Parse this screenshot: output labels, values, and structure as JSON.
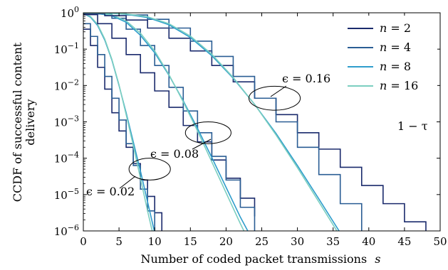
{
  "chart_data": {
    "type": "line",
    "xlabel_text": "Number of coded packet transmissions",
    "xlabel_var": "s",
    "ylabel": [
      "CCDF of successful content",
      "delivery"
    ],
    "xlim": [
      0,
      50
    ],
    "ylim_log10": [
      -6,
      0
    ],
    "y_scale": "log",
    "x_ticks": [
      0,
      5,
      10,
      15,
      20,
      25,
      30,
      35,
      40,
      45,
      50
    ],
    "y_ticks": [
      {
        "base": "10",
        "exp": "0"
      },
      {
        "base": "10",
        "exp": "−1"
      },
      {
        "base": "10",
        "exp": "−2"
      },
      {
        "base": "10",
        "exp": "−3"
      },
      {
        "base": "10",
        "exp": "−4"
      },
      {
        "base": "10",
        "exp": "−5"
      },
      {
        "base": "10",
        "exp": "−6"
      }
    ],
    "grid": false,
    "legend_position": "top-right",
    "colors": {
      "n2": "#1a2a6c",
      "n4": "#2a5d94",
      "n8": "#2f9dcc",
      "n16": "#7ccfc0",
      "axis": "#000000"
    },
    "legend": [
      {
        "var": "n",
        "value": "2",
        "color_key": "n2"
      },
      {
        "var": "n",
        "value": "4",
        "color_key": "n4"
      },
      {
        "var": "n",
        "value": "8",
        "color_key": "n8"
      },
      {
        "var": "n",
        "value": "16",
        "color_key": "n16"
      }
    ],
    "annotations": {
      "one_minus_tau": "1 − τ",
      "eps_016": "ϵ = 0.16",
      "eps_008": "ϵ = 0.08",
      "eps_002": "ϵ = 0.02"
    },
    "ellipses": [
      {
        "name": "ellipse-eps-016",
        "cx": 26.8,
        "cy": -2.35,
        "rx": 3.6,
        "ry": 0.33
      },
      {
        "name": "ellipse-eps-008",
        "cx": 17.5,
        "cy": -3.3,
        "rx": 3.2,
        "ry": 0.3
      },
      {
        "name": "ellipse-eps-002",
        "cx": 9.3,
        "cy": -4.3,
        "rx": 2.9,
        "ry": 0.3
      }
    ],
    "groups": [
      {
        "epsilon": "0.02",
        "series": [
          {
            "color_key": "n2",
            "step": true,
            "x": [
              0,
              1,
              2,
              3,
              4,
              5,
              6,
              7,
              8,
              9,
              10,
              11
            ],
            "y": [
              -0.45,
              -0.9,
              -1.5,
              -2.1,
              -2.75,
              -3.25,
              -3.7,
              -4.15,
              -4.6,
              -5.05,
              -5.5,
              -6.05
            ]
          },
          {
            "color_key": "n4",
            "step": true,
            "x": [
              0,
              1,
              2,
              3,
              4,
              5,
              6,
              7,
              8,
              9,
              10
            ],
            "y": [
              -0.3,
              -0.65,
              -1.15,
              -1.75,
              -2.35,
              -2.95,
              -3.6,
              -4.2,
              -4.85,
              -5.45,
              -6.05
            ]
          },
          {
            "color_key": "n8",
            "step": false,
            "x": [
              0,
              1,
              2,
              3,
              4,
              5,
              6,
              7,
              8,
              9,
              10
            ],
            "y": [
              -0.02,
              -0.12,
              -0.35,
              -0.75,
              -1.3,
              -2.0,
              -2.75,
              -3.55,
              -4.35,
              -5.2,
              -6.05
            ]
          },
          {
            "color_key": "n16",
            "step": false,
            "x": [
              0,
              1,
              2,
              3,
              4,
              5,
              6,
              7,
              8,
              9,
              10
            ],
            "y": [
              -0.01,
              -0.1,
              -0.32,
              -0.72,
              -1.28,
              -1.98,
              -2.8,
              -3.65,
              -4.55,
              -5.45,
              -6.3
            ]
          }
        ]
      },
      {
        "epsilon": "0.08",
        "series": [
          {
            "color_key": "n2",
            "step": true,
            "x": [
              0,
              2,
              4,
              6,
              8,
              10,
              12,
              14,
              16,
              18,
              20,
              22,
              24
            ],
            "y": [
              -0.05,
              -0.3,
              -0.7,
              -1.15,
              -1.65,
              -2.15,
              -2.6,
              -3.1,
              -3.55,
              -4.05,
              -4.55,
              -5.1,
              -5.6
            ]
          },
          {
            "color_key": "n4",
            "step": true,
            "x": [
              0,
              2,
              4,
              6,
              8,
              10,
              12,
              14,
              16,
              18,
              20,
              22,
              24
            ],
            "y": [
              -0.01,
              -0.03,
              -0.15,
              -0.45,
              -0.9,
              -1.45,
              -2.05,
              -2.7,
              -3.3,
              -3.95,
              -4.6,
              -5.35,
              -6.05
            ]
          },
          {
            "color_key": "n8",
            "step": false,
            "x": [
              0,
              2,
              4,
              6,
              8,
              10,
              12,
              14,
              16,
              18,
              20,
              22,
              24
            ],
            "y": [
              -0.005,
              -0.02,
              -0.08,
              -0.26,
              -0.62,
              -1.1,
              -1.72,
              -2.42,
              -3.18,
              -3.98,
              -4.8,
              -5.62,
              -6.35
            ]
          },
          {
            "color_key": "n16",
            "step": false,
            "x": [
              0,
              2,
              4,
              6,
              8,
              10,
              12,
              14,
              16,
              18,
              20,
              22,
              24
            ],
            "y": [
              -0.002,
              -0.01,
              -0.06,
              -0.22,
              -0.56,
              -1.05,
              -1.7,
              -2.45,
              -3.25,
              -4.1,
              -4.95,
              -5.8,
              -6.6
            ]
          }
        ]
      },
      {
        "epsilon": "0.16",
        "series": [
          {
            "color_key": "n2",
            "step": true,
            "x": [
              0,
              3,
              6,
              9,
              12,
              15,
              18,
              21,
              24,
              27,
              30,
              33,
              36,
              39,
              42,
              45,
              48
            ],
            "y": [
              -0.02,
              -0.08,
              -0.2,
              -0.42,
              -0.7,
              -1.05,
              -1.45,
              -1.9,
              -2.35,
              -2.8,
              -3.3,
              -3.75,
              -4.25,
              -4.75,
              -5.25,
              -5.75,
              -6.25
            ]
          },
          {
            "color_key": "n4",
            "step": true,
            "x": [
              0,
              3,
              6,
              9,
              12,
              15,
              18,
              21,
              24,
              27,
              30,
              33,
              36,
              39
            ],
            "y": [
              0,
              -0.01,
              -0.06,
              -0.18,
              -0.42,
              -0.78,
              -1.2,
              -1.75,
              -2.35,
              -3.0,
              -3.7,
              -4.45,
              -5.25,
              -6.1
            ]
          },
          {
            "color_key": "n8",
            "step": false,
            "x": [
              0,
              3,
              6,
              9,
              12,
              15,
              18,
              21,
              24,
              27,
              30,
              33,
              36,
              38
            ],
            "y": [
              0,
              -0.005,
              -0.04,
              -0.13,
              -0.33,
              -0.68,
              -1.18,
              -1.8,
              -2.52,
              -3.32,
              -4.2,
              -5.12,
              -6.05,
              -6.6
            ]
          },
          {
            "color_key": "n16",
            "step": false,
            "x": [
              0,
              3,
              6,
              9,
              12,
              15,
              18,
              21,
              24,
              27,
              30,
              33,
              36,
              38
            ],
            "y": [
              0,
              -0.003,
              -0.03,
              -0.11,
              -0.3,
              -0.64,
              -1.14,
              -1.78,
              -2.52,
              -3.36,
              -4.26,
              -5.2,
              -6.15,
              -6.7
            ]
          }
        ]
      }
    ]
  }
}
